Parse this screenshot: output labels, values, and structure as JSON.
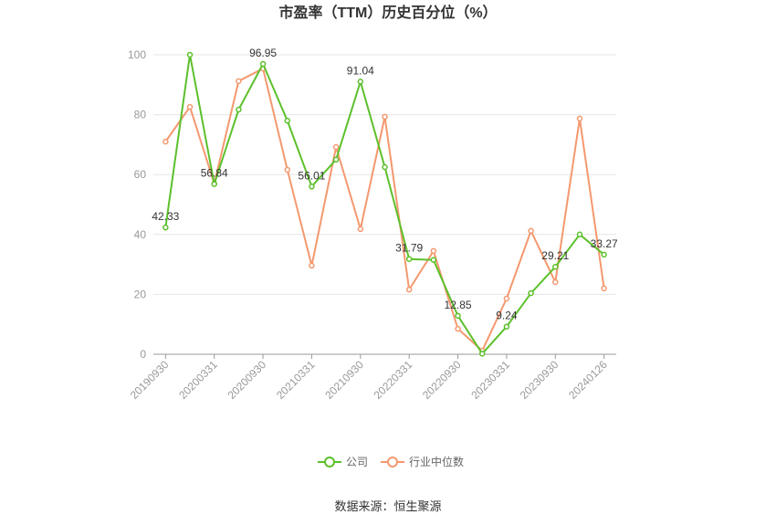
{
  "chart_data": {
    "type": "line",
    "title": "市盈率（TTM）历史百分位（%）",
    "categories": [
      "20190930",
      null,
      "20200331",
      null,
      "20200930",
      null,
      "20210331",
      null,
      "20210930",
      null,
      "20220331",
      null,
      "20220930",
      null,
      "20230331",
      null,
      "20230930",
      null,
      "20240126"
    ],
    "series": [
      {
        "name": "公司",
        "color": "#5cc02b",
        "values": [
          42.33,
          100,
          56.84,
          81.7,
          96.95,
          78,
          56.01,
          65,
          91.04,
          62.5,
          31.79,
          31.5,
          12.85,
          0.2,
          9.24,
          20.4,
          29.21,
          40,
          33.27
        ],
        "value_labels": [
          "42.33",
          null,
          "56.84",
          null,
          "96.95",
          null,
          "56.01",
          null,
          "91.04",
          null,
          "31.79",
          null,
          "12.85",
          null,
          "9.24",
          null,
          "29.21",
          null,
          "33.27"
        ]
      },
      {
        "name": "行业中位数",
        "color": "#f4986f",
        "values": [
          71,
          82.6,
          57,
          91.2,
          95.4,
          61.6,
          29.6,
          69.2,
          41.8,
          79.3,
          21.6,
          34.5,
          8.5,
          1.2,
          18.6,
          41.2,
          24.1,
          78.7,
          22
        ]
      }
    ],
    "ylim": [
      0,
      100
    ],
    "yticks": [
      0,
      20,
      40,
      60,
      80,
      100
    ],
    "grid": true,
    "legend": "bottom",
    "source": "数据来源：恒生聚源"
  }
}
